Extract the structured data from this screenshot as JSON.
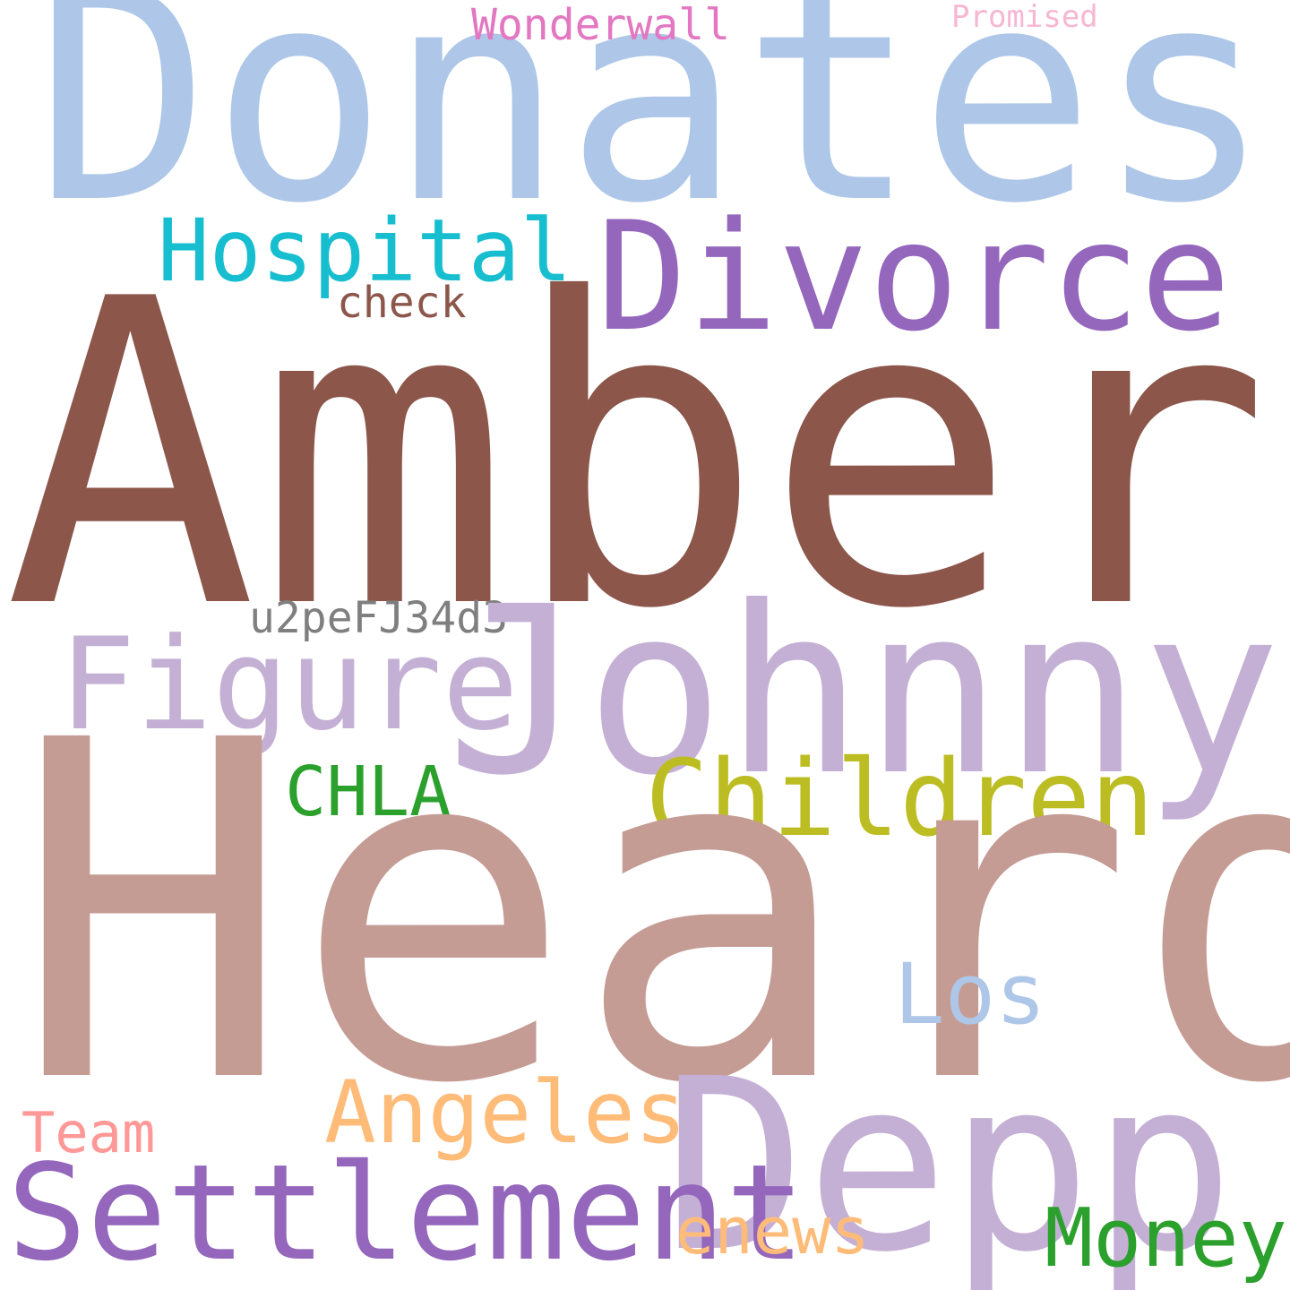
{
  "words": [
    {
      "id": "donates",
      "text": "Donates",
      "color": "#aec7e8"
    },
    {
      "id": "wonderwall",
      "text": "Wonderwall",
      "color": "#e377c2"
    },
    {
      "id": "promised",
      "text": "Promised",
      "color": "#f7b6d2"
    },
    {
      "id": "hospital",
      "text": "Hospital",
      "color": "#17becf"
    },
    {
      "id": "divorce",
      "text": "Divorce",
      "color": "#9467bd"
    },
    {
      "id": "check",
      "text": "check",
      "color": "#8c564b"
    },
    {
      "id": "amber",
      "text": "Amber",
      "color": "#8c564b"
    },
    {
      "id": "u2pefj34d3",
      "text": "u2peFJ34d3",
      "color": "#7f7f7f"
    },
    {
      "id": "figure",
      "text": "Figure",
      "color": "#c5b0d5"
    },
    {
      "id": "johnny",
      "text": "Johnny",
      "color": "#c5b0d5"
    },
    {
      "id": "chla",
      "text": "CHLA",
      "color": "#2ca02c"
    },
    {
      "id": "children",
      "text": "Children",
      "color": "#bcbd22"
    },
    {
      "id": "heard",
      "text": "Heard",
      "color": "#c49c94"
    },
    {
      "id": "los",
      "text": "Los",
      "color": "#aec7e8"
    },
    {
      "id": "angeles",
      "text": "Angeles",
      "color": "#ffbb78"
    },
    {
      "id": "team",
      "text": "Team",
      "color": "#ff9896"
    },
    {
      "id": "depp",
      "text": "Depp",
      "color": "#c5b0d5"
    },
    {
      "id": "settlement",
      "text": "Settlement",
      "color": "#9467bd"
    },
    {
      "id": "enews",
      "text": "enews",
      "color": "#ffbb78"
    },
    {
      "id": "money",
      "text": "Money",
      "color": "#2ca02c"
    }
  ]
}
